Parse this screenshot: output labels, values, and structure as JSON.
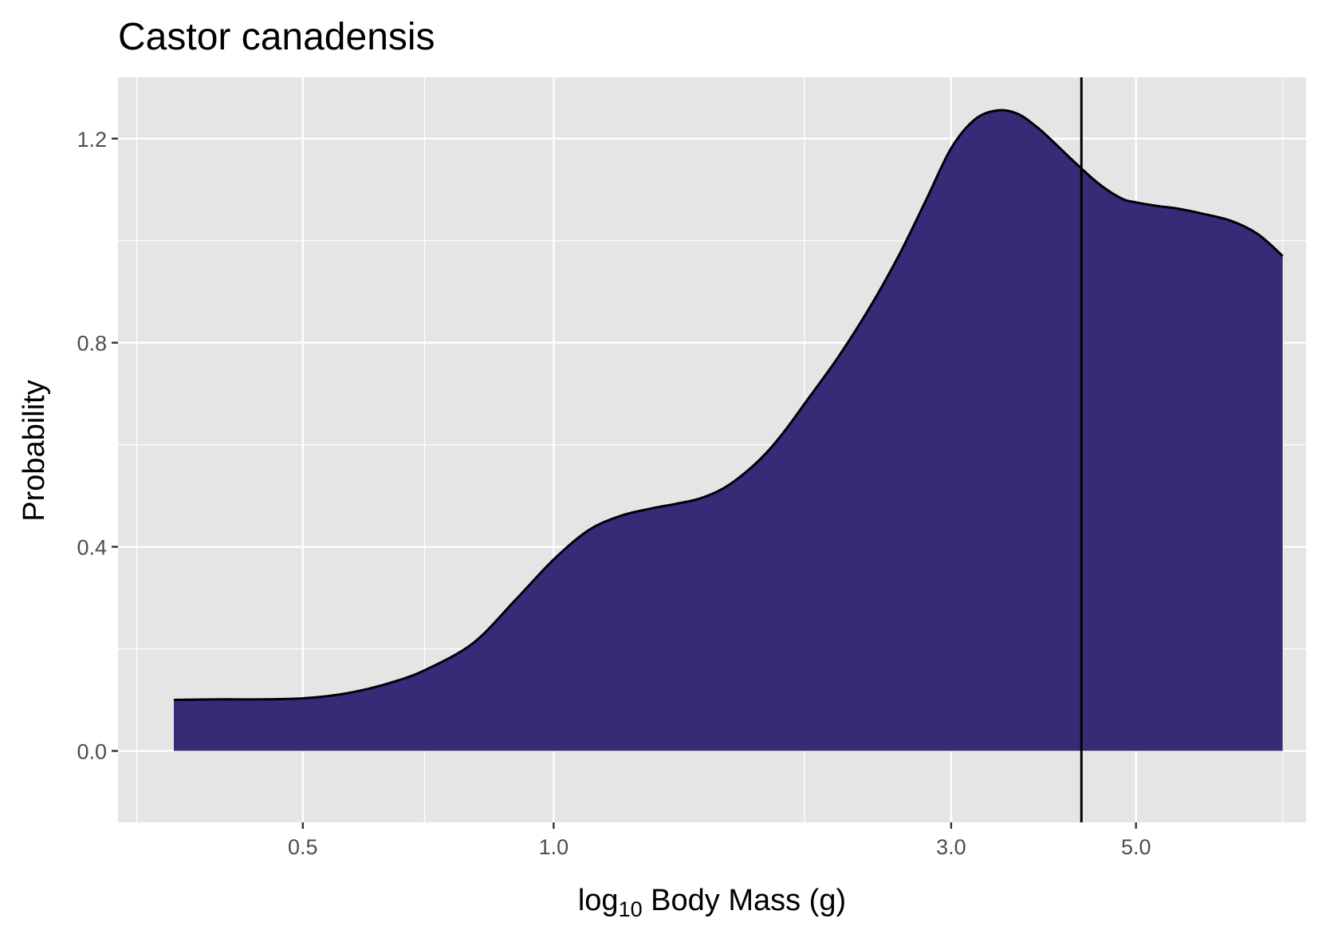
{
  "chart_data": {
    "type": "area",
    "title": "Castor canadensis",
    "xlabel": {
      "prefix": "log",
      "subscript": "10",
      "suffix": " Body Mass (g)"
    },
    "ylabel": "Probability",
    "x_scale": "log10",
    "xlim": [
      0.3,
      8.0
    ],
    "ylim": [
      -0.14,
      1.32
    ],
    "x_ticks": [
      {
        "value": 0.5,
        "label": "0.5"
      },
      {
        "value": 1.0,
        "label": "1.0"
      },
      {
        "value": 3.0,
        "label": "3.0"
      },
      {
        "value": 5.0,
        "label": "5.0"
      }
    ],
    "x_minor_gridlines": [
      0.316,
      0.7,
      2.0,
      4.3,
      7.5
    ],
    "y_ticks": [
      {
        "value": 0.0,
        "label": "0.0"
      },
      {
        "value": 0.4,
        "label": "0.4"
      },
      {
        "value": 0.8,
        "label": "0.8"
      },
      {
        "value": 1.2,
        "label": "1.2"
      }
    ],
    "y_minor_gridlines": [
      0.2,
      0.6,
      1.0
    ],
    "grid": true,
    "fill_color": "#372a77",
    "line_color": "#000000",
    "panel_color": "#e5e5e5",
    "series": [
      {
        "x": [
          0.35,
          0.4,
          0.45,
          0.5,
          0.55,
          0.6,
          0.65,
          0.7,
          0.8,
          0.9,
          1.0,
          1.1,
          1.2,
          1.3,
          1.4,
          1.5,
          1.6,
          1.7,
          1.8,
          1.9,
          2.0,
          2.2,
          2.4,
          2.6,
          2.8,
          3.0,
          3.2,
          3.4,
          3.6,
          3.8,
          4.0,
          4.2,
          4.5,
          4.8,
          5.0,
          5.3,
          5.6,
          6.0,
          6.5,
          7.0,
          7.5
        ],
        "y": [
          0.1,
          0.101,
          0.101,
          0.103,
          0.11,
          0.122,
          0.138,
          0.158,
          0.211,
          0.296,
          0.375,
          0.432,
          0.46,
          0.474,
          0.484,
          0.495,
          0.515,
          0.546,
          0.584,
          0.63,
          0.68,
          0.774,
          0.871,
          0.973,
          1.08,
          1.181,
          1.237,
          1.255,
          1.249,
          1.223,
          1.19,
          1.157,
          1.113,
          1.083,
          1.075,
          1.068,
          1.063,
          1.053,
          1.039,
          1.013,
          0.97
        ]
      }
    ],
    "vertical_line": {
      "x": 4.3
    }
  }
}
